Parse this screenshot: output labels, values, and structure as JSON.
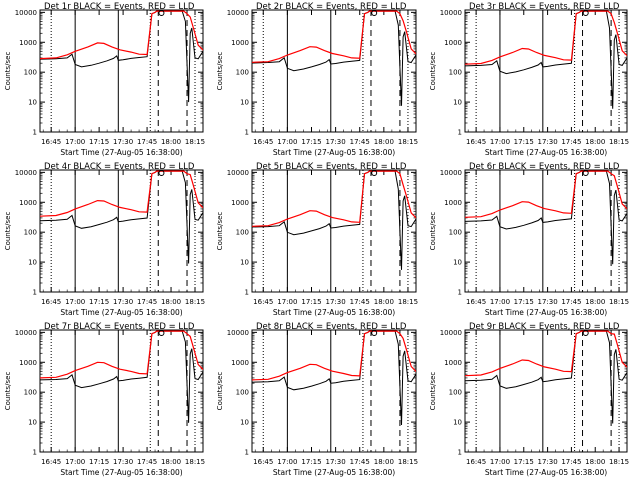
{
  "colors": {
    "events": "#000000",
    "lld": "#ff0000",
    "axes": "#000000",
    "background": "#ffffff"
  },
  "shared": {
    "ylabel": "Counts/sec",
    "xlabel": "Start Time (27-Aug-05 16:38:00)",
    "x_ticks": [
      "16:45",
      "17:00",
      "17:15",
      "17:30",
      "17:45",
      "18:00",
      "18:15"
    ],
    "y_ticks": [
      "1",
      "10",
      "100",
      "1000",
      "10000"
    ]
  },
  "chart_data": [
    {
      "type": "line",
      "title": "Det 1r BLACK = Events, RED = LLD",
      "xlabel": "Start Time (27-Aug-05 16:38:00)",
      "ylabel": "Counts/sec",
      "xlim": [
        "16:38",
        "18:20"
      ],
      "ylim": [
        1,
        12000
      ],
      "yscale": "log",
      "grid": false,
      "series": [
        {
          "name": "Events"
        },
        {
          "name": "LLD"
        }
      ]
    },
    {
      "type": "line",
      "title": "Det 2r BLACK = Events, RED = LLD",
      "xlabel": "Start Time (27-Aug-05 16:38:00)",
      "ylabel": "Counts/sec",
      "xlim": [
        "16:38",
        "18:20"
      ],
      "ylim": [
        1,
        12000
      ],
      "yscale": "log",
      "grid": false,
      "series": [
        {
          "name": "Events"
        },
        {
          "name": "LLD"
        }
      ]
    },
    {
      "type": "line",
      "title": "Det 3r BLACK = Events, RED = LLD",
      "xlabel": "Start Time (27-Aug-05 16:38:00)",
      "ylabel": "Counts/sec",
      "xlim": [
        "16:38",
        "18:20"
      ],
      "ylim": [
        1,
        12000
      ],
      "yscale": "log",
      "grid": false,
      "series": [
        {
          "name": "Events"
        },
        {
          "name": "LLD"
        }
      ]
    },
    {
      "type": "line",
      "title": "Det 4r BLACK = Events, RED = LLD",
      "xlabel": "Start Time (27-Aug-05 16:38:00)",
      "ylabel": "Counts/sec",
      "xlim": [
        "16:38",
        "18:20"
      ],
      "ylim": [
        1,
        12000
      ],
      "yscale": "log",
      "grid": false,
      "series": [
        {
          "name": "Events"
        },
        {
          "name": "LLD"
        }
      ]
    },
    {
      "type": "line",
      "title": "Det 5r BLACK = Events, RED = LLD",
      "xlabel": "Start Time (27-Aug-05 16:38:00)",
      "ylabel": "Counts/sec",
      "xlim": [
        "16:38",
        "18:20"
      ],
      "ylim": [
        1,
        12000
      ],
      "yscale": "log",
      "grid": false,
      "series": [
        {
          "name": "Events"
        },
        {
          "name": "LLD"
        }
      ]
    },
    {
      "type": "line",
      "title": "Det 6r BLACK = Events, RED = LLD",
      "xlabel": "Start Time (27-Aug-05 16:38:00)",
      "ylabel": "Counts/sec",
      "xlim": [
        "16:38",
        "18:20"
      ],
      "ylim": [
        1,
        12000
      ],
      "yscale": "log",
      "grid": false,
      "series": [
        {
          "name": "Events"
        },
        {
          "name": "LLD"
        }
      ]
    },
    {
      "type": "line",
      "title": "Det 7r BLACK = Events, RED = LLD",
      "xlabel": "Start Time (27-Aug-05 16:38:00)",
      "ylabel": "Counts/sec",
      "xlim": [
        "16:38",
        "18:20"
      ],
      "ylim": [
        1,
        12000
      ],
      "yscale": "log",
      "grid": false,
      "series": [
        {
          "name": "Events"
        },
        {
          "name": "LLD"
        }
      ]
    },
    {
      "type": "line",
      "title": "Det 8r BLACK = Events, RED = LLD",
      "xlabel": "Start Time (27-Aug-05 16:38:00)",
      "ylabel": "Counts/sec",
      "xlim": [
        "16:38",
        "18:20"
      ],
      "ylim": [
        1,
        12000
      ],
      "yscale": "log",
      "grid": false,
      "series": [
        {
          "name": "Events"
        },
        {
          "name": "LLD"
        }
      ]
    },
    {
      "type": "line",
      "title": "Det 9r BLACK = Events, RED = LLD",
      "xlabel": "Start Time (27-Aug-05 16:38:00)",
      "ylabel": "Counts/sec",
      "xlim": [
        "16:38",
        "18:20"
      ],
      "ylim": [
        1,
        12000
      ],
      "yscale": "log",
      "grid": false,
      "series": [
        {
          "name": "Events"
        },
        {
          "name": "LLD"
        }
      ]
    }
  ]
}
